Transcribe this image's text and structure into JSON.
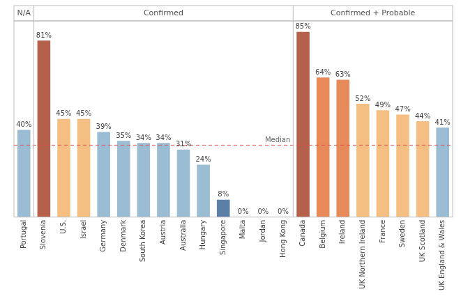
{
  "chart_data": {
    "type": "bar",
    "categories": [
      "Portugal",
      "Slovenia",
      "U.S.",
      "Israel",
      "Germany",
      "Denmark",
      "South Korea",
      "Austria",
      "Australia",
      "Hungary",
      "Singapore",
      "Malta",
      "Jordan",
      "Hong Kong",
      "Canada",
      "Belgium",
      "Ireland",
      "UK Northern Ireland",
      "France",
      "Sweden",
      "UK Scotland",
      "UK England & Wales"
    ],
    "values": [
      40,
      81,
      45,
      45,
      39,
      35,
      34,
      34,
      31,
      24,
      8,
      0,
      0,
      0,
      85,
      64,
      63,
      52,
      49,
      47,
      44,
      41
    ],
    "value_labels": [
      "40%",
      "81%",
      "45%",
      "45%",
      "39%",
      "35%",
      "34%",
      "34%",
      "31%",
      "24%",
      "8%",
      "0%",
      "0%",
      "0%",
      "85%",
      "64%",
      "63%",
      "52%",
      "49%",
      "47%",
      "44%",
      "41%"
    ],
    "colors": [
      "#9bbdd4",
      "#b5604a",
      "#f5be83",
      "#f5be83",
      "#9bbdd4",
      "#9bbdd4",
      "#9bbdd4",
      "#9bbdd4",
      "#9bbdd4",
      "#9bbdd4",
      "#5b7fa6",
      "#9bbdd4",
      "#9bbdd4",
      "#9bbdd4",
      "#b5604a",
      "#e8895a",
      "#e8895a",
      "#f5be83",
      "#f5be83",
      "#f5be83",
      "#f5be83",
      "#9bbdd4"
    ],
    "ylim": [
      0,
      90
    ],
    "yticks": [],
    "grid": false,
    "data_labels": true,
    "tick_labels": "x",
    "reference_line": {
      "value": 33,
      "label": "Median",
      "color": "#e05050",
      "line_style": "dashed"
    },
    "sections": [
      {
        "label": "N/A",
        "from": "Portugal",
        "to": "Portugal"
      },
      {
        "label": "Confirmed",
        "from": "Slovenia",
        "to": "Hong Kong"
      },
      {
        "label": "Confirmed + Probable",
        "from": "Canada",
        "to": "UK England & Wales"
      }
    ]
  }
}
